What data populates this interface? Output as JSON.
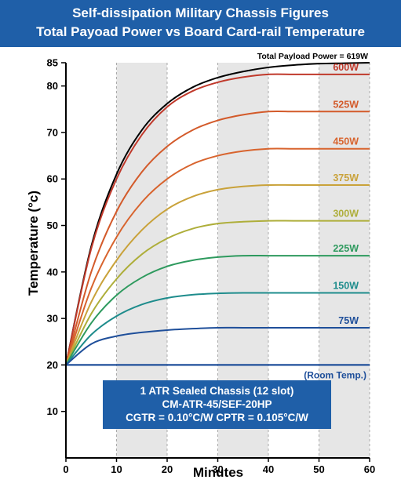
{
  "header": {
    "title_line1": "Self-dissipation Military Chassis Figures",
    "title_line2": "Total Payoad Power vs Board Card-rail Temperature"
  },
  "info_box": {
    "line1": "1 ATR Sealed Chassis (12 slot)",
    "line2": "CM-ATR-45/SEF-20HP",
    "line3": "CGTR = 0.10°C/W   CPTR = 0.105°C/W"
  },
  "colors": {
    "header_bg": "#1f5fa8",
    "room_temp_line": "#1f4f9a",
    "shade": "#e6e6e6"
  },
  "chart_data": {
    "type": "line",
    "title": "Self-dissipation Military Chassis Figures — Total Payoad Power vs Board Card-rail Temperature",
    "xlabel": "Minutes",
    "ylabel": "Temperature (°c)",
    "xlim": [
      0,
      60
    ],
    "ylim": [
      0,
      85
    ],
    "xticks": [
      0,
      10,
      20,
      30,
      40,
      50,
      60
    ],
    "yticks": [
      10,
      20,
      30,
      40,
      50,
      60,
      70,
      80,
      85
    ],
    "shaded_x_ranges": [
      [
        10,
        20
      ],
      [
        30,
        40
      ],
      [
        50,
        60
      ]
    ],
    "grid": "dashed vertical lines at 10-minute intervals",
    "room_temp": {
      "label": "(Room Temp.)",
      "value": 20
    },
    "series": [
      {
        "name": "Total Payload Power = 619W",
        "final": 85,
        "color": "#000000",
        "x": [
          0,
          5,
          10,
          15,
          20,
          25,
          30,
          35,
          40,
          45,
          50,
          55,
          60
        ],
        "y": [
          20,
          45.5,
          61,
          70.5,
          76.2,
          79.7,
          81.8,
          83.1,
          84.0,
          84.5,
          84.8,
          84.9,
          85.0
        ]
      },
      {
        "name": "600W",
        "final": 82.5,
        "color": "#c0392b",
        "x": [
          0,
          5,
          10,
          15,
          20,
          25,
          30,
          35,
          40,
          45,
          50,
          55,
          60
        ],
        "y": [
          20,
          45.0,
          60.0,
          69.5,
          75.5,
          78.9,
          80.8,
          81.9,
          82.5,
          82.5,
          82.5,
          82.5,
          82.5
        ]
      },
      {
        "name": "525W",
        "final": 74.5,
        "color": "#d35a2a",
        "x": [
          0,
          5,
          10,
          15,
          20,
          25,
          30,
          35,
          40,
          45,
          50,
          55,
          60
        ],
        "y": [
          20,
          40.0,
          53.0,
          61.5,
          67.0,
          70.5,
          72.6,
          73.8,
          74.5,
          74.5,
          74.5,
          74.5,
          74.5
        ]
      },
      {
        "name": "450W",
        "final": 66.5,
        "color": "#d8642e",
        "x": [
          0,
          5,
          10,
          15,
          20,
          25,
          30,
          35,
          40,
          45,
          50,
          55,
          60
        ],
        "y": [
          20,
          36.5,
          47.5,
          55.0,
          60.0,
          63.2,
          65.0,
          66.0,
          66.5,
          66.5,
          66.5,
          66.5,
          66.5
        ]
      },
      {
        "name": "375W",
        "final": 58.7,
        "color": "#c9a23a",
        "x": [
          0,
          5,
          10,
          15,
          20,
          25,
          30,
          35,
          40,
          45,
          50,
          55,
          60
        ],
        "y": [
          20,
          33.5,
          42.5,
          49.0,
          53.5,
          56.2,
          57.7,
          58.4,
          58.7,
          58.7,
          58.7,
          58.7,
          58.7
        ]
      },
      {
        "name": "300W",
        "final": 51.0,
        "color": "#aeae3a",
        "x": [
          0,
          5,
          10,
          15,
          20,
          25,
          30,
          35,
          40,
          45,
          50,
          55,
          60
        ],
        "y": [
          20,
          31.0,
          38.5,
          43.8,
          47.2,
          49.3,
          50.4,
          50.8,
          51.0,
          51.0,
          51.0,
          51.0,
          51.0
        ]
      },
      {
        "name": "225W",
        "final": 43.5,
        "color": "#2e9a5e",
        "x": [
          0,
          5,
          10,
          15,
          20,
          25,
          30,
          35,
          40,
          45,
          50,
          55,
          60
        ],
        "y": [
          20,
          29.0,
          35.0,
          38.8,
          41.2,
          42.5,
          43.2,
          43.5,
          43.5,
          43.5,
          43.5,
          43.5,
          43.5
        ]
      },
      {
        "name": "150W",
        "final": 35.5,
        "color": "#1e8c8c",
        "x": [
          0,
          5,
          10,
          15,
          20,
          25,
          30,
          35,
          40,
          45,
          50,
          55,
          60
        ],
        "y": [
          20,
          26.5,
          30.5,
          33.0,
          34.4,
          35.1,
          35.4,
          35.5,
          35.5,
          35.5,
          35.5,
          35.5,
          35.5
        ]
      },
      {
        "name": "75W",
        "final": 28.0,
        "color": "#1f4f9a",
        "x": [
          0,
          5,
          10,
          15,
          20,
          25,
          30,
          35,
          40,
          45,
          50,
          55,
          60
        ],
        "y": [
          20,
          24.5,
          26.2,
          27.0,
          27.5,
          27.8,
          28.0,
          28.0,
          28.0,
          28.0,
          28.0,
          28.0,
          28.0
        ]
      }
    ]
  }
}
